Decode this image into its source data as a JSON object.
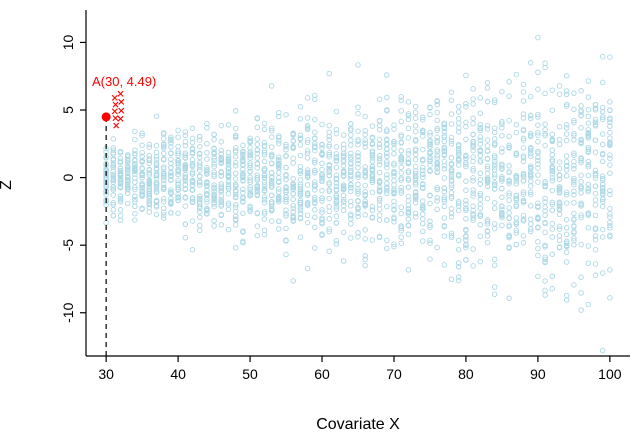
{
  "figure": {
    "background": "#ffffff"
  },
  "chart_data": {
    "type": "scatter",
    "title": "",
    "xlabel": "Covariate X",
    "ylabel": "Z",
    "xlim": [
      27.2,
      102.8
    ],
    "ylim": [
      -13.2,
      12.4
    ],
    "x_ticks": [
      30,
      40,
      50,
      60,
      70,
      80,
      90,
      100
    ],
    "y_ticks": [
      -10,
      -5,
      0,
      5,
      10
    ],
    "grid": false,
    "legend": null,
    "axis_color": "#000000",
    "tick_label_color": "#000000",
    "point_style": "open-circle",
    "point_color": "#ADD8E6",
    "scatter_model": {
      "note": "Heteroscedastic point cloud: for each integer x from 30 to 100 there is a vertical column of points drawn from Normal(mean 0, sd = 0.04 * x), so the spread fans out from about +/-2.5 at x=30 to about +/-12 at x=100.",
      "x_start": 30,
      "x_end": 100,
      "points_per_x": 30,
      "sd_per_unit_x": 0.04,
      "seed": 20
    },
    "highlight": {
      "label": "A(30, 4.49)",
      "x": 30,
      "y": 4.49,
      "color": "#FF0000",
      "dashed_guide_from_axis": true
    },
    "cross_points": {
      "marker": "x",
      "color": "#FF0000",
      "points": [
        [
          31.2,
          5.9
        ],
        [
          32.0,
          6.2
        ],
        [
          31.3,
          5.4
        ],
        [
          32.1,
          5.6
        ],
        [
          31.2,
          4.9
        ],
        [
          32.1,
          4.95
        ],
        [
          31.3,
          4.4
        ],
        [
          32.0,
          4.35
        ],
        [
          31.4,
          3.85
        ]
      ]
    }
  }
}
